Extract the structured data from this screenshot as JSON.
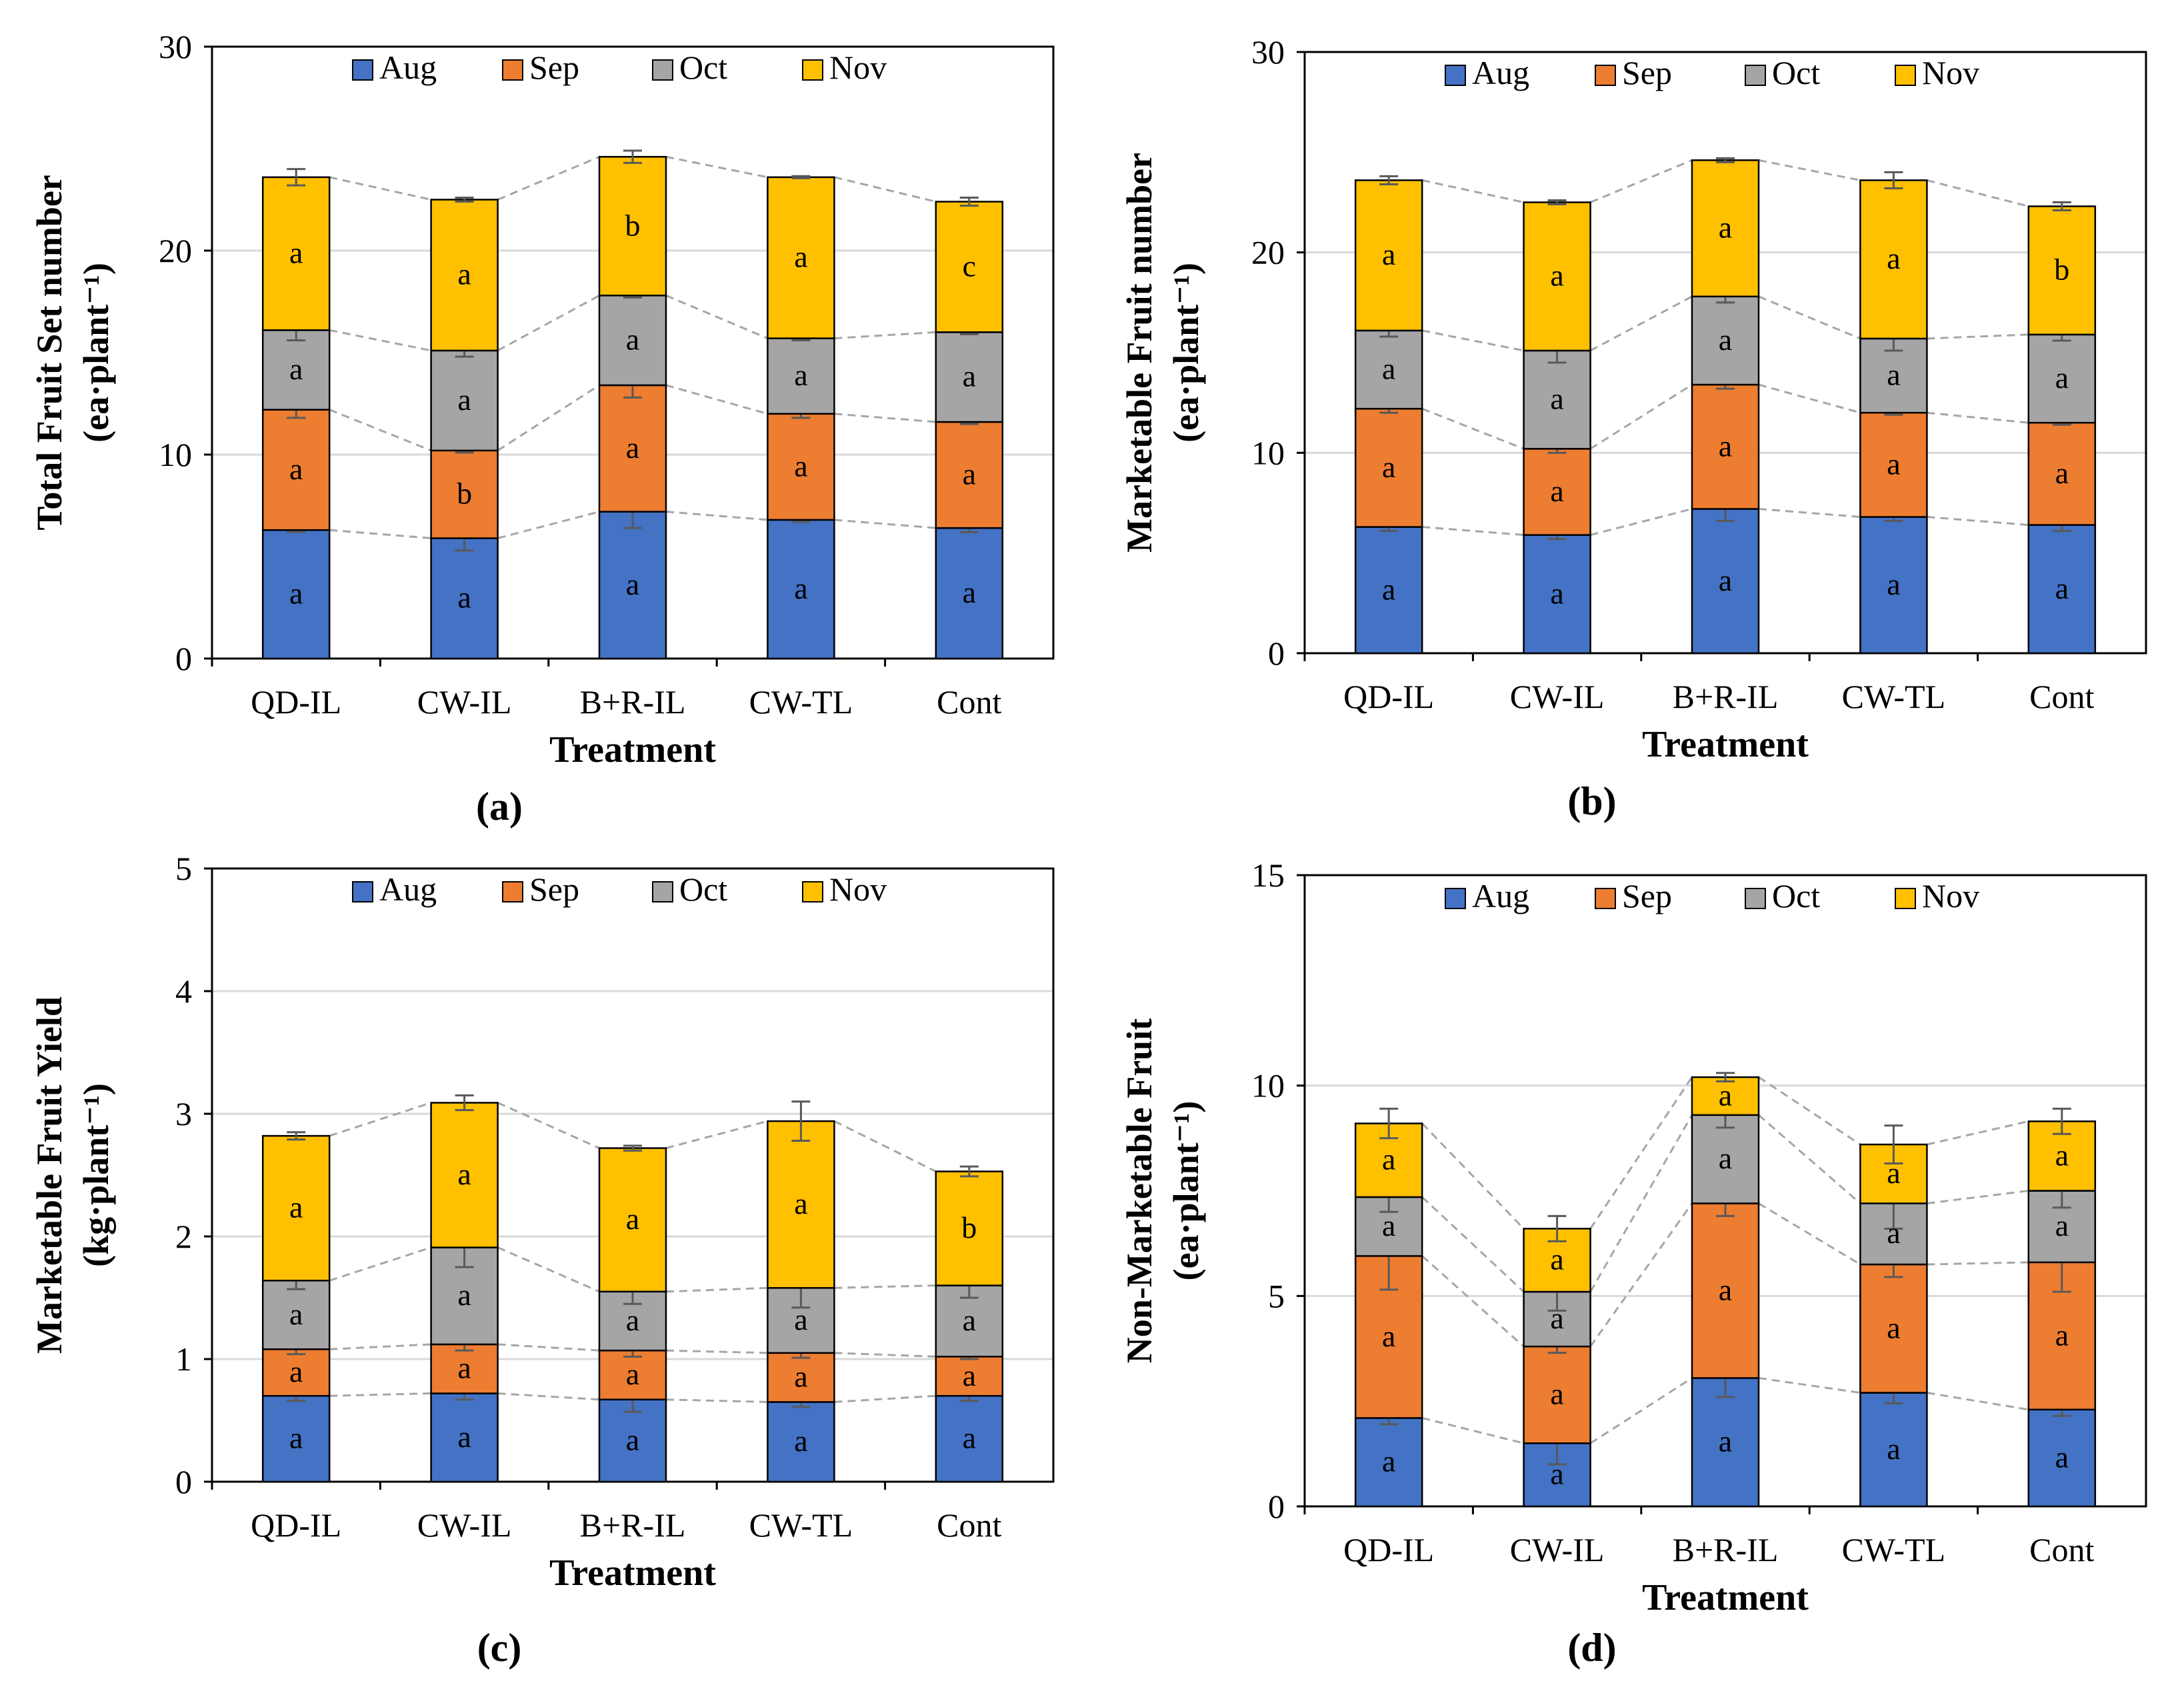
{
  "colors": {
    "Aug": "#4472c4",
    "Sep": "#ed7d31",
    "Oct": "#a5a5a5",
    "Nov": "#ffc000",
    "gridline": "#d9d9d9",
    "connector": "#a6a6a6",
    "error_bar": "#595959"
  },
  "chart_data": [
    {
      "type": "bar",
      "stacked": true,
      "panel_label": "(a)",
      "categories": [
        "QD-IL",
        "CW-IL",
        "B+R-IL",
        "CW-TL",
        "Cont"
      ],
      "series": [
        {
          "name": "Aug",
          "values": [
            6.3,
            5.9,
            7.2,
            6.8,
            6.4
          ],
          "errors": [
            0.1,
            0.6,
            0.8,
            0.1,
            0.2
          ],
          "letters": [
            "a",
            "a",
            "a",
            "a",
            "a"
          ]
        },
        {
          "name": "Sep",
          "values": [
            5.9,
            4.3,
            6.2,
            5.2,
            5.2
          ],
          "errors": [
            0.4,
            0.1,
            0.6,
            0.2,
            0.1
          ],
          "letters": [
            "a",
            "b",
            "a",
            "a",
            "a"
          ]
        },
        {
          "name": "Oct",
          "values": [
            3.9,
            4.9,
            4.4,
            3.7,
            4.4
          ],
          "errors": [
            0.5,
            0.3,
            0.1,
            0.1,
            0.1
          ],
          "letters": [
            "a",
            "a",
            "a",
            "a",
            "a"
          ]
        },
        {
          "name": "Nov",
          "values": [
            7.5,
            7.4,
            6.8,
            7.9,
            6.4
          ],
          "errors": [
            0.4,
            0.1,
            0.3,
            0.05,
            0.2
          ],
          "letters": [
            "a",
            "a",
            "b",
            "a",
            "c"
          ]
        }
      ],
      "xlabel": "Treatment",
      "ylabel_line1": "Total Fruit Set number",
      "ylabel_line2": "(ea·plant⁻¹)",
      "ylim": [
        0,
        30
      ],
      "yticks": [
        "0",
        "10",
        "20",
        "30"
      ],
      "grid": true,
      "legend": "top"
    },
    {
      "type": "bar",
      "stacked": true,
      "panel_label": "(b)",
      "categories": [
        "QD-IL",
        "CW-IL",
        "B+R-IL",
        "CW-TL",
        "Cont"
      ],
      "series": [
        {
          "name": "Aug",
          "values": [
            6.3,
            5.9,
            7.2,
            6.8,
            6.4
          ],
          "errors": [
            0.2,
            0.2,
            0.6,
            0.2,
            0.3
          ],
          "letters": [
            "a",
            "a",
            "a",
            "a",
            "a"
          ]
        },
        {
          "name": "Sep",
          "values": [
            5.9,
            4.3,
            6.2,
            5.2,
            5.1
          ],
          "errors": [
            0.2,
            0.2,
            0.2,
            0.1,
            0.1
          ],
          "letters": [
            "a",
            "a",
            "a",
            "a",
            "a"
          ]
        },
        {
          "name": "Oct",
          "values": [
            3.9,
            4.9,
            4.4,
            3.7,
            4.4
          ],
          "errors": [
            0.3,
            0.6,
            0.3,
            0.6,
            0.3
          ],
          "letters": [
            "a",
            "a",
            "a",
            "a",
            "a"
          ]
        },
        {
          "name": "Nov",
          "values": [
            7.5,
            7.4,
            6.8,
            7.9,
            6.4
          ],
          "errors": [
            0.2,
            0.1,
            0.1,
            0.4,
            0.2
          ],
          "letters": [
            "a",
            "a",
            "a",
            "a",
            "b"
          ]
        }
      ],
      "xlabel": "Treatment",
      "ylabel_line1": "Marketable Fruit number",
      "ylabel_line2": "(ea·plant⁻¹)",
      "ylim": [
        0,
        30
      ],
      "yticks": [
        "0",
        "10",
        "20",
        "30"
      ],
      "grid": true,
      "legend": "top"
    },
    {
      "type": "bar",
      "stacked": true,
      "panel_label": "(c)",
      "categories": [
        "QD-IL",
        "CW-IL",
        "B+R-IL",
        "CW-TL",
        "Cont"
      ],
      "series": [
        {
          "name": "Aug",
          "values": [
            0.7,
            0.72,
            0.67,
            0.65,
            0.7
          ],
          "errors": [
            0.04,
            0.05,
            0.1,
            0.04,
            0.04
          ],
          "letters": [
            "a",
            "a",
            "a",
            "a",
            "a"
          ]
        },
        {
          "name": "Sep",
          "values": [
            0.38,
            0.4,
            0.4,
            0.4,
            0.32
          ],
          "errors": [
            0.04,
            0.05,
            0.05,
            0.04,
            0.02
          ],
          "letters": [
            "a",
            "a",
            "a",
            "a",
            "a"
          ]
        },
        {
          "name": "Oct",
          "values": [
            0.56,
            0.79,
            0.48,
            0.53,
            0.58
          ],
          "errors": [
            0.07,
            0.16,
            0.1,
            0.16,
            0.1
          ],
          "letters": [
            "a",
            "a",
            "a",
            "a",
            "a"
          ]
        },
        {
          "name": "Nov",
          "values": [
            1.18,
            1.18,
            1.17,
            1.36,
            0.93
          ],
          "errors": [
            0.03,
            0.06,
            0.02,
            0.16,
            0.04
          ],
          "letters": [
            "a",
            "a",
            "a",
            "a",
            "b"
          ]
        }
      ],
      "xlabel": "Treatment",
      "ylabel_line1": "Marketable Fruit Yield",
      "ylabel_line2": "(kg·plant⁻¹)",
      "ylim": [
        0,
        5
      ],
      "yticks": [
        "0",
        "1",
        "2",
        "3",
        "4",
        "5"
      ],
      "grid": true,
      "legend": "top"
    },
    {
      "type": "bar",
      "stacked": true,
      "panel_label": "(d)",
      "categories": [
        "QD-IL",
        "CW-IL",
        "B+R-IL",
        "CW-TL",
        "Cont"
      ],
      "series": [
        {
          "name": "Aug",
          "values": [
            2.1,
            1.5,
            3.05,
            2.7,
            2.3
          ],
          "errors": [
            0.15,
            0.5,
            0.45,
            0.25,
            0.15
          ],
          "letters": [
            "a",
            "a",
            "a",
            "a",
            "a"
          ]
        },
        {
          "name": "Sep",
          "values": [
            3.85,
            2.3,
            4.15,
            3.05,
            3.5
          ],
          "errors": [
            0.8,
            0.15,
            0.3,
            0.3,
            0.7
          ],
          "letters": [
            "a",
            "a",
            "a",
            "a",
            "a"
          ]
        },
        {
          "name": "Oct",
          "values": [
            1.4,
            1.3,
            2.1,
            1.45,
            1.7
          ],
          "errors": [
            0.35,
            0.45,
            0.3,
            0.6,
            0.4
          ],
          "letters": [
            "a",
            "a",
            "a",
            "a",
            "a"
          ]
        },
        {
          "name": "Nov",
          "values": [
            1.75,
            1.5,
            0.9,
            1.4,
            1.65
          ],
          "errors": [
            0.35,
            0.3,
            0.1,
            0.45,
            0.3
          ],
          "letters": [
            "a",
            "a",
            "a",
            "a",
            "a"
          ]
        }
      ],
      "xlabel": "Treatment",
      "ylabel_line1": "Non-Marketable Fruit",
      "ylabel_line2": "(ea·plant⁻¹)",
      "ylim": [
        0,
        15
      ],
      "yticks": [
        "0",
        "5",
        "10",
        "15"
      ],
      "grid": true,
      "legend": "top"
    }
  ]
}
